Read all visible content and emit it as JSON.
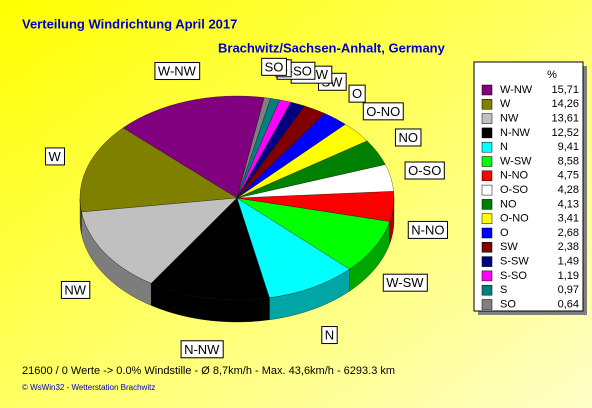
{
  "chart_data": {
    "type": "pie",
    "title": "Verteilung Windrichtung   April 2017",
    "subtitle": "Brachwitz/Sachsen-Anhalt, Germany",
    "legend_header": "%",
    "categories": [
      "W-NW",
      "W",
      "NW",
      "N-NW",
      "N",
      "W-SW",
      "N-NO",
      "O-SO",
      "NO",
      "O-NO",
      "O",
      "SW",
      "S-SW",
      "S-SO",
      "S",
      "SO"
    ],
    "values": [
      15.71,
      14.26,
      13.61,
      12.52,
      9.41,
      8.58,
      4.75,
      4.28,
      4.13,
      3.41,
      2.68,
      2.38,
      1.49,
      1.19,
      0.97,
      0.64
    ],
    "value_labels": [
      "15,71",
      "14,26",
      "13,61",
      "12,52",
      "9,41",
      "8,58",
      "4,75",
      "4,28",
      "4,13",
      "3,41",
      "2,68",
      "2,38",
      "1,49",
      "1,19",
      "0,97",
      "0,64"
    ],
    "colors": [
      "#800080",
      "#808000",
      "#c0c0c0",
      "#000000",
      "#00ffff",
      "#00ff00",
      "#ff0000",
      "#ffffff",
      "#008000",
      "#ffff00",
      "#0000ff",
      "#800000",
      "#000080",
      "#ff00ff",
      "#008080",
      "#808080"
    ],
    "legend": "right",
    "footer": "21600 / 0 Werte  -> 0.0% Windstille   -   Ø 8,7km/h   -  Max. 43,6km/h   -    6293.3 km",
    "credits": "© WsWin32  -  Wetterstation Brachwitz"
  }
}
